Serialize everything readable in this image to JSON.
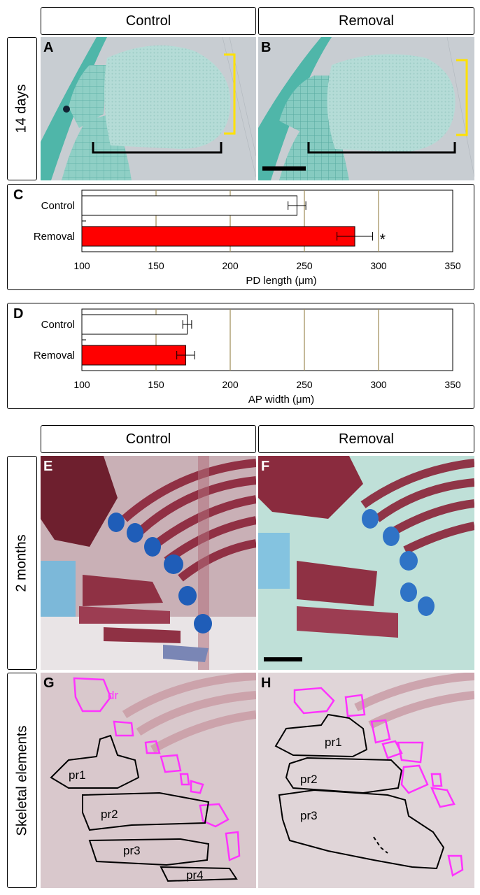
{
  "top": {
    "col_headers": [
      "Control",
      "Removal"
    ],
    "row_label": "14 days",
    "panels": [
      "A",
      "B"
    ]
  },
  "chart_c": {
    "label": "C"
  },
  "chart_d": {
    "label": "D"
  },
  "chart_data": [
    {
      "type": "bar",
      "orientation": "horizontal",
      "categories": [
        "Control",
        "Removal"
      ],
      "values": [
        245,
        284
      ],
      "errors": [
        6,
        12
      ],
      "colors": [
        "#ffffff",
        "#ff0000"
      ],
      "significance": [
        "",
        "*"
      ],
      "xlabel": "PD length (μm)",
      "xlim": [
        100,
        350
      ],
      "xticks": [
        "100",
        "150",
        "200",
        "250",
        "300",
        "350"
      ]
    },
    {
      "type": "bar",
      "orientation": "horizontal",
      "categories": [
        "Control",
        "Removal"
      ],
      "values": [
        171,
        170
      ],
      "errors": [
        3,
        6
      ],
      "colors": [
        "#ffffff",
        "#ff0000"
      ],
      "significance": [
        "",
        ""
      ],
      "xlabel": "AP width (μm)",
      "xlim": [
        100,
        350
      ],
      "xticks": [
        "100",
        "150",
        "200",
        "250",
        "300",
        "350"
      ]
    }
  ],
  "bottom": {
    "col_headers": [
      "Control",
      "Removal"
    ],
    "row_label_1": "2 months",
    "row_label_2": "Skeletal elements",
    "panels": [
      "E",
      "F",
      "G",
      "H"
    ],
    "labels_g": [
      "dr",
      "pr1",
      "pr2",
      "pr3",
      "pr4"
    ],
    "labels_h": [
      "pr1",
      "pr2",
      "pr3"
    ]
  }
}
